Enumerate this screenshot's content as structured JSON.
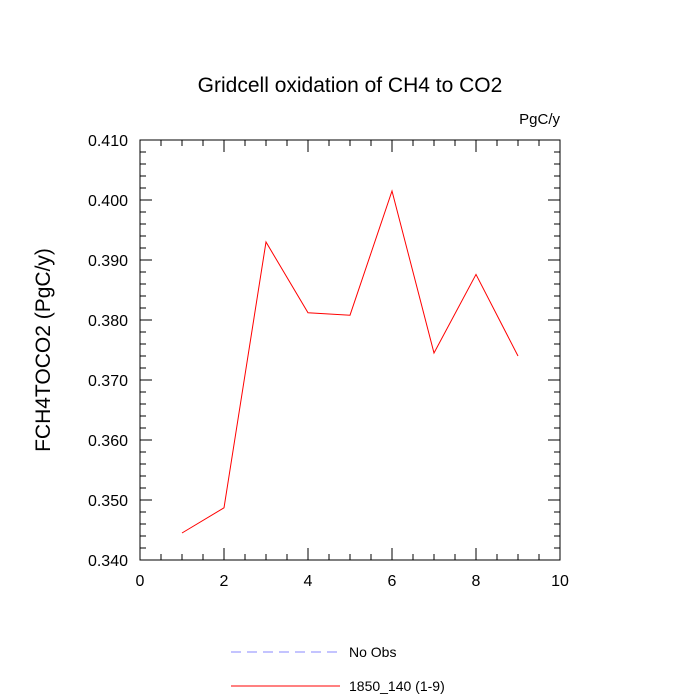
{
  "chart_data": {
    "type": "line",
    "title": "Gridcell oxidation of CH4 to CO2",
    "units_label": "PgC/y",
    "xlabel": "",
    "ylabel": "FCH4TOCO2  (PgC/y)",
    "xlim": [
      0,
      10
    ],
    "ylim": [
      0.34,
      0.41
    ],
    "x_ticks": [
      0,
      2,
      4,
      6,
      8,
      10
    ],
    "x_tick_labels": [
      "0",
      "2",
      "4",
      "6",
      "8",
      "10"
    ],
    "y_ticks": [
      0.34,
      0.35,
      0.36,
      0.37,
      0.38,
      0.39,
      0.4,
      0.41
    ],
    "y_tick_labels": [
      "0.340",
      "0.350",
      "0.360",
      "0.370",
      "0.380",
      "0.390",
      "0.400",
      "0.410"
    ],
    "grid": false,
    "series": [
      {
        "name": "1850_140 (1-9)",
        "color": "#ff0000",
        "dash": "solid",
        "x": [
          1,
          2,
          3,
          4,
          5,
          6,
          7,
          8,
          9
        ],
        "values": [
          0.3445,
          0.3487,
          0.393,
          0.3812,
          0.3808,
          0.4015,
          0.3745,
          0.3876,
          0.374
        ]
      }
    ],
    "legend": [
      {
        "label": "No Obs",
        "color": "#8888ff",
        "dash": "dashed"
      },
      {
        "label": "1850_140 (1-9)",
        "color": "#ff0000",
        "dash": "solid"
      }
    ]
  }
}
